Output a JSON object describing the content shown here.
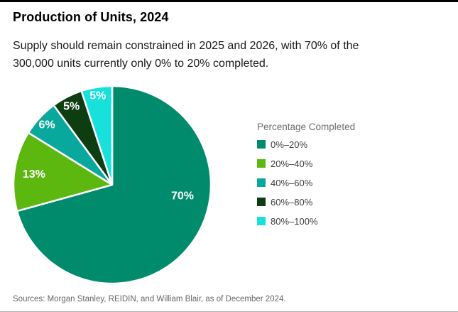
{
  "header": {
    "title": "Production of Units, 2024",
    "subtitle": "Supply should remain constrained in 2025 and 2026, with 70% of the 300,000 units currently only 0% to 20% completed."
  },
  "chart_data": {
    "type": "pie",
    "title": "Production of Units, 2024",
    "legend_title": "Percentage Completed",
    "legend_position": "right",
    "categories": [
      "0%–20%",
      "20%–40%",
      "40%–60%",
      "60%–80%",
      "80%–100%"
    ],
    "values": [
      70,
      13,
      6,
      5,
      5
    ],
    "unit": "percent",
    "slice_labels": [
      "70%",
      "13%",
      "6%",
      "5%",
      "5%"
    ],
    "colors": [
      "#008C6C",
      "#5CB80F",
      "#09A89D",
      "#0E3D12",
      "#18E1DB"
    ],
    "slice_label_color": "#ffffff",
    "separator_color": "#ffffff",
    "start_angle_deg": 0,
    "direction": "clockwise"
  },
  "footer": {
    "sources": "Sources: Morgan Stanley, REIDIN, and William Blair, as of December 2024."
  }
}
